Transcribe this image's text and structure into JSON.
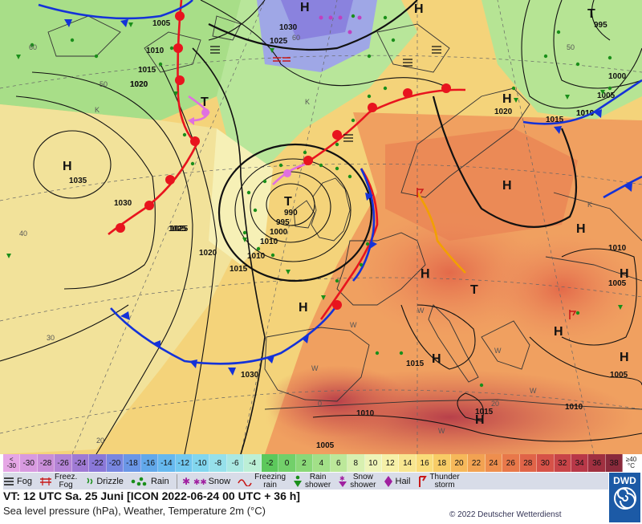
{
  "map": {
    "isobar_labels": [
      "1005",
      "1010",
      "1015",
      "1020",
      "1025",
      "1030",
      "1035",
      "990",
      "995",
      "1000",
      "1030",
      "1025",
      "995",
      "1000",
      "1005",
      "1010",
      "1015",
      "1020",
      "1025",
      "1030",
      "1010",
      "1015",
      "1020",
      "1010",
      "1015",
      "1010",
      "1005",
      "1010",
      "1005",
      "1015",
      "1010",
      "1005",
      "1010",
      "1020"
    ],
    "pressure_centers": [
      "H",
      "H",
      "H",
      "H",
      "H",
      "H",
      "H",
      "H",
      "H",
      "H",
      "H",
      "T",
      "T",
      "T",
      "T",
      "H",
      "H"
    ],
    "temperature_labels": [
      "60",
      "50",
      "50",
      "40",
      "30",
      "20",
      "20",
      "0",
      "60",
      "K",
      "K",
      "W",
      "W",
      "W",
      "W",
      "W",
      "W",
      "K"
    ],
    "colors": {
      "warm_front": "#e8141e",
      "cold_front": "#1432d8",
      "occlusion": "#e070e0",
      "convergence": "#f2a000",
      "isobar": "#111111",
      "rain_dot": "#1a8f1a"
    }
  },
  "scale": {
    "first_label_top": "<",
    "first_label_bottom": "-30",
    "values": [
      "-30",
      "-28",
      "-26",
      "-24",
      "-22",
      "-20",
      "-18",
      "-16",
      "-14",
      "-12",
      "-10",
      "-8",
      "-6",
      "-4",
      "-2",
      "0",
      "2",
      "4",
      "6",
      "8",
      "10",
      "12",
      "14",
      "16",
      "18",
      "20",
      "22",
      "24",
      "26",
      "28",
      "30",
      "32",
      "34",
      "36",
      "38"
    ],
    "last_label_top": "≥40",
    "last_label_bottom": "°C",
    "colors": [
      "#e6a6e6",
      "#d89ae0",
      "#c98ed8",
      "#b484d6",
      "#9f7ad4",
      "#8a78d8",
      "#7886e0",
      "#6a96e6",
      "#62a8ea",
      "#66b8ee",
      "#72c8f0",
      "#82d6ee",
      "#96e0ea",
      "#aae8e2",
      "#bcefd6",
      "#5cc85c",
      "#72d06a",
      "#8ad878",
      "#a2e088",
      "#bce89a",
      "#d8f0b0",
      "#eef4b8",
      "#f6f0a8",
      "#f8e690",
      "#fadc7a",
      "#f8cc66",
      "#f6b85a",
      "#f2a252",
      "#ee8e4e",
      "#e8784a",
      "#e06448",
      "#d65248",
      "#c84448",
      "#b83848",
      "#a03040",
      "#8a2a3c"
    ]
  },
  "legend": {
    "fog": "Fog",
    "freezing_fog": "Freez.\nFog",
    "drizzle": "Drizzle",
    "rain": "Rain",
    "snow": "Snow",
    "freezing_rain": "Freezing\nrain",
    "rain_shower": "Rain\nshower",
    "snow_shower": "Snow\nshower",
    "hail": "Hail",
    "thunderstorm": "Thunder\nstorm"
  },
  "footer": {
    "valid_time": "VT: 12 UTC Sa.  25 Juni [ICON 2022-06-24  00 UTC + 36 h]",
    "subtitle": "Sea level pressure (hPa), Weather, Temperature 2m (°C)",
    "copyright": "© 2022 Deutscher Wetterdienst",
    "logo_text": "DWD"
  }
}
